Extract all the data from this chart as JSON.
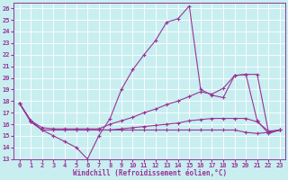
{
  "xlabel": "Windchill (Refroidissement éolien,°C)",
  "bg_color": "#c8eef0",
  "line_color": "#993399",
  "xlim": [
    -0.5,
    23.5
  ],
  "ylim": [
    13,
    26.5
  ],
  "yticks": [
    13,
    14,
    15,
    16,
    17,
    18,
    19,
    20,
    21,
    22,
    23,
    24,
    25,
    26
  ],
  "xticks": [
    0,
    1,
    2,
    3,
    4,
    5,
    6,
    7,
    8,
    9,
    10,
    11,
    12,
    13,
    14,
    15,
    16,
    17,
    18,
    19,
    20,
    21,
    22,
    23
  ],
  "line1_y": [
    17.8,
    16.3,
    15.5,
    15.0,
    14.5,
    14.0,
    13.0,
    15.0,
    16.5,
    19.0,
    20.7,
    22.0,
    23.2,
    24.8,
    25.1,
    26.2,
    19.0,
    18.5,
    18.3,
    20.2,
    20.3,
    16.3,
    15.2,
    15.5
  ],
  "line2_y": [
    17.8,
    16.3,
    15.7,
    15.6,
    15.6,
    15.6,
    15.6,
    15.6,
    16.0,
    16.3,
    16.6,
    17.0,
    17.3,
    17.7,
    18.0,
    18.4,
    18.8,
    18.6,
    19.1,
    20.2,
    20.3,
    20.3,
    15.3,
    15.5
  ],
  "line3_y": [
    17.8,
    16.2,
    15.5,
    15.5,
    15.5,
    15.5,
    15.5,
    15.5,
    15.5,
    15.6,
    15.7,
    15.8,
    15.9,
    16.0,
    16.1,
    16.3,
    16.4,
    16.5,
    16.5,
    16.5,
    16.5,
    16.2,
    15.4,
    15.5
  ],
  "line4_y": [
    17.8,
    16.2,
    15.5,
    15.5,
    15.5,
    15.5,
    15.5,
    15.5,
    15.5,
    15.5,
    15.5,
    15.5,
    15.5,
    15.5,
    15.5,
    15.5,
    15.5,
    15.5,
    15.5,
    15.5,
    15.3,
    15.2,
    15.3,
    15.5
  ]
}
